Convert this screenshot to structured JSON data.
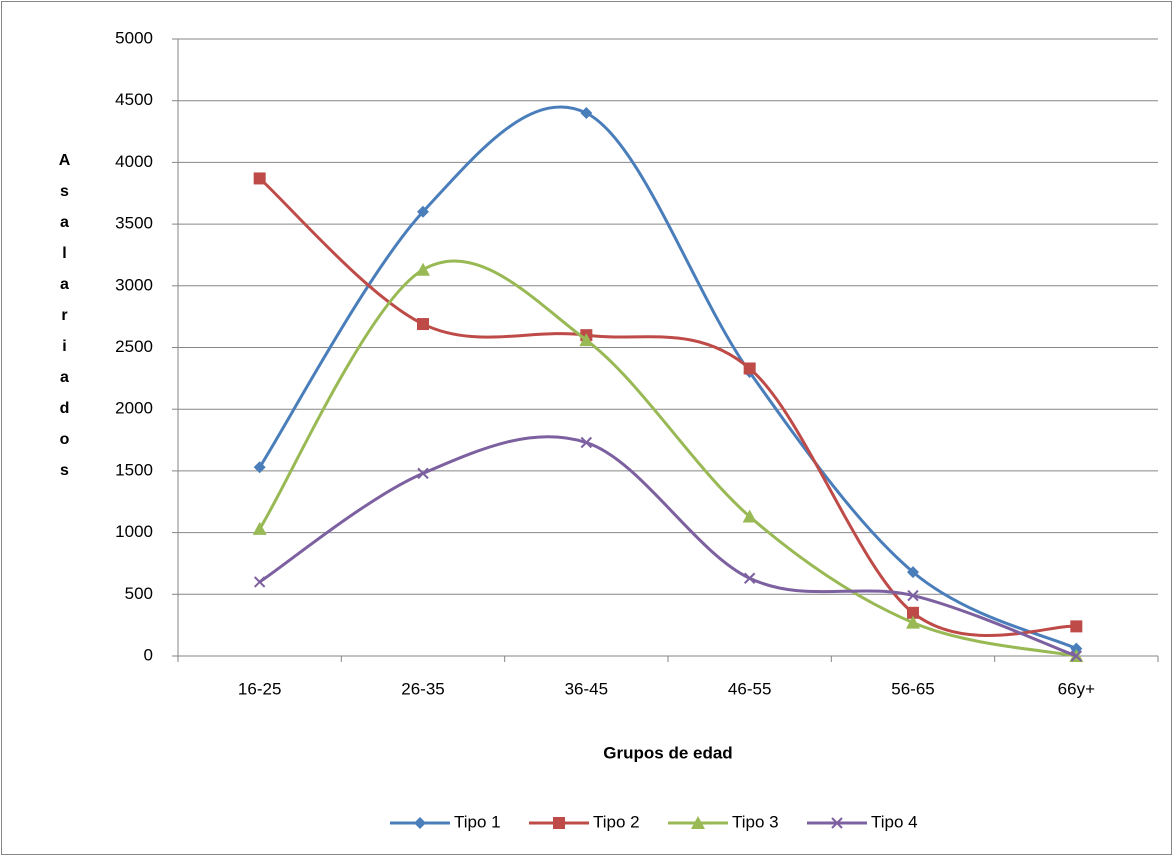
{
  "chart_data": {
    "type": "line",
    "x_label": "Grupos de edad",
    "y_label": "Asalariados",
    "categories": [
      "16-25",
      "26-35",
      "36-45",
      "46-55",
      "56-65",
      "66y+"
    ],
    "series": [
      {
        "name": "Tipo 1",
        "color": "#4a7ebb",
        "marker": "diamond",
        "values": [
          1530,
          3600,
          4400,
          2300,
          680,
          60
        ]
      },
      {
        "name": "Tipo 2",
        "color": "#be4b48",
        "marker": "square",
        "values": [
          3870,
          2690,
          2600,
          2330,
          350,
          240
        ]
      },
      {
        "name": "Tipo 3",
        "color": "#98b954",
        "marker": "triangle",
        "values": [
          1030,
          3130,
          2560,
          1130,
          270,
          0
        ]
      },
      {
        "name": "Tipo 4",
        "color": "#7d60a0",
        "marker": "x",
        "values": [
          600,
          1480,
          1730,
          630,
          490,
          0
        ]
      }
    ],
    "ylim": [
      0,
      5000
    ],
    "yticks": [
      0,
      500,
      1000,
      1500,
      2000,
      2500,
      3000,
      3500,
      4000,
      4500,
      5000
    ],
    "grid": true,
    "smooth": true,
    "legend": "bottom"
  }
}
